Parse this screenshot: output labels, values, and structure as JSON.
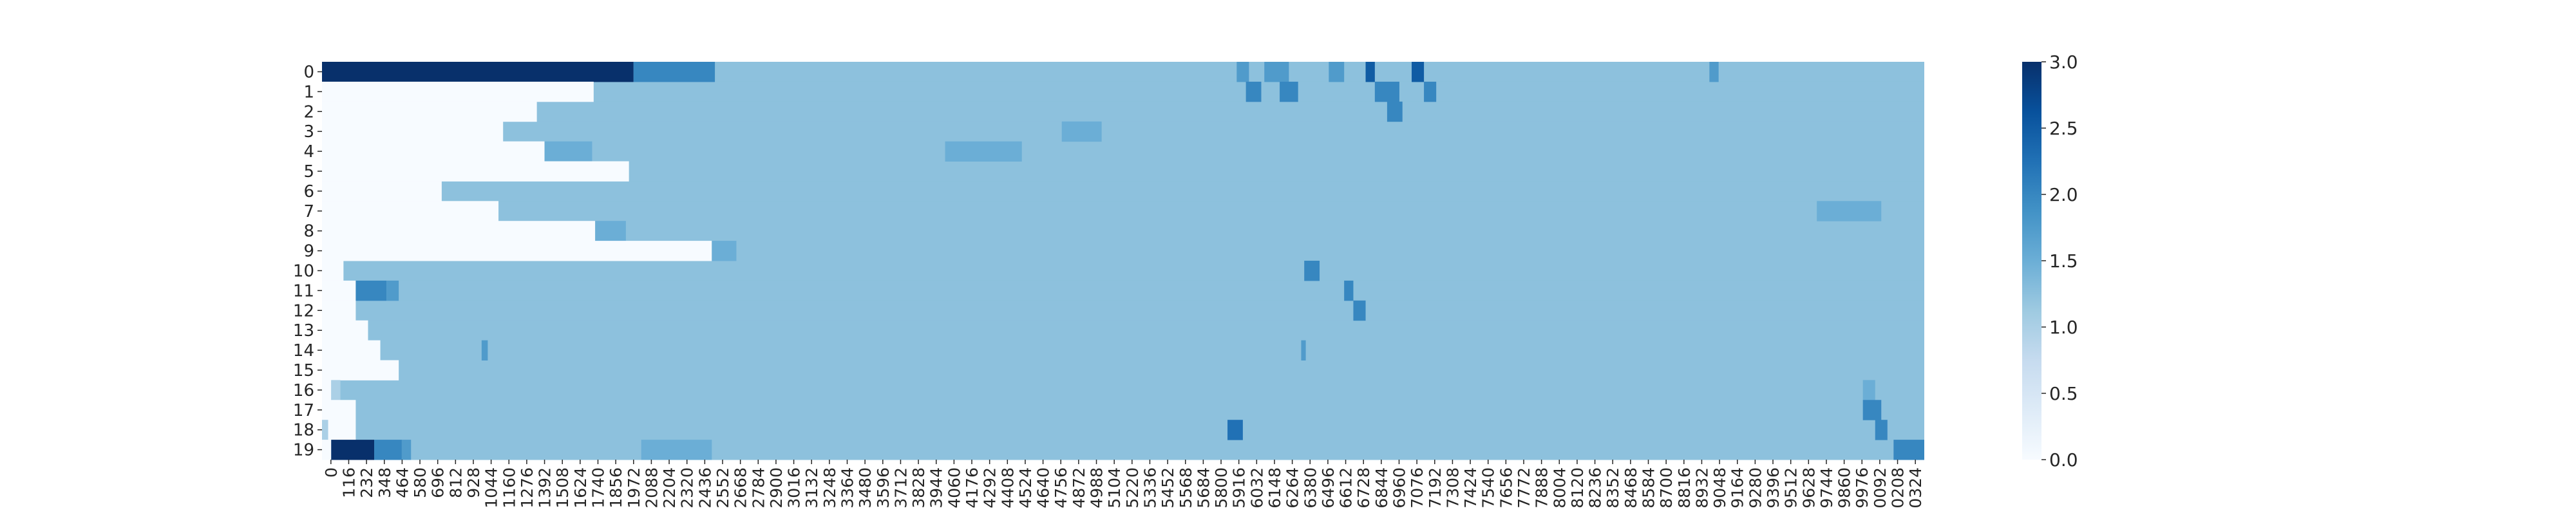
{
  "chart_data": {
    "type": "heatmap",
    "title": "",
    "xlabel": "",
    "ylabel": "",
    "colormap": "Blues",
    "value_range": [
      0,
      3
    ],
    "rows": [
      "0",
      "1",
      "2",
      "3",
      "4",
      "5",
      "6",
      "7",
      "8",
      "9",
      "10",
      "11",
      "12",
      "13",
      "14",
      "15",
      "16",
      "17",
      "18",
      "19"
    ],
    "x_ticks": [
      "0",
      "116",
      "232",
      "348",
      "464",
      "580",
      "696",
      "812",
      "928",
      "1044",
      "1160",
      "1276",
      "1392",
      "1508",
      "1624",
      "1740",
      "1856",
      "1972",
      "2088",
      "2204",
      "2320",
      "2436",
      "2552",
      "2668",
      "2784",
      "2900",
      "3016",
      "3132",
      "3248",
      "3364",
      "3480",
      "3596",
      "3712",
      "3828",
      "3944",
      "4060",
      "4176",
      "4292",
      "4408",
      "4524",
      "4640",
      "4756",
      "4872",
      "4988",
      "5104",
      "5220",
      "5336",
      "5452",
      "5568",
      "5684",
      "5800",
      "5916",
      "6032",
      "6148",
      "6264",
      "6380",
      "6496",
      "6612",
      "6728",
      "6844",
      "6960",
      "7076",
      "7192",
      "7308",
      "7424",
      "7540",
      "7656",
      "7772",
      "7888",
      "8004",
      "8120",
      "8236",
      "8352",
      "8468",
      "8584",
      "8700",
      "8816",
      "8932",
      "9048",
      "9164",
      "9280",
      "9396",
      "9512",
      "9628",
      "9744",
      "9860",
      "9976",
      "0092",
      "0208",
      "0324"
    ],
    "x_range": [
      0,
      10440
    ],
    "background_value": 1.25,
    "segments": [
      {
        "row": 0,
        "runs": [
          [
            0,
            2030,
            3
          ],
          [
            2030,
            2560,
            2
          ],
          [
            5960,
            6040,
            1.75
          ],
          [
            6140,
            6300,
            1.75
          ],
          [
            6560,
            6660,
            1.75
          ],
          [
            6800,
            6860,
            2.5
          ],
          [
            7100,
            7180,
            2.5
          ],
          [
            9040,
            9100,
            1.75
          ]
        ]
      },
      {
        "row": 1,
        "runs": [
          [
            0,
            1770,
            0
          ],
          [
            6020,
            6120,
            2
          ],
          [
            6240,
            6360,
            2
          ],
          [
            6860,
            7020,
            2
          ],
          [
            7180,
            7260,
            2
          ]
        ]
      },
      {
        "row": 2,
        "runs": [
          [
            0,
            1400,
            0
          ],
          [
            6940,
            7040,
            2
          ]
        ]
      },
      {
        "row": 3,
        "runs": [
          [
            0,
            1180,
            0
          ],
          [
            4820,
            5080,
            1.5
          ]
        ]
      },
      {
        "row": 4,
        "runs": [
          [
            0,
            1450,
            0
          ],
          [
            1450,
            1760,
            1.5
          ],
          [
            4060,
            4560,
            1.5
          ]
        ]
      },
      {
        "row": 5,
        "runs": [
          [
            0,
            2000,
            0
          ]
        ]
      },
      {
        "row": 6,
        "runs": [
          [
            0,
            780,
            0
          ]
        ]
      },
      {
        "row": 7,
        "runs": [
          [
            0,
            1150,
            0
          ],
          [
            9740,
            10160,
            1.5
          ]
        ]
      },
      {
        "row": 8,
        "runs": [
          [
            0,
            1780,
            0
          ],
          [
            1780,
            1980,
            1.5
          ]
        ]
      },
      {
        "row": 9,
        "runs": [
          [
            0,
            2540,
            0
          ],
          [
            2540,
            2700,
            1.5
          ]
        ]
      },
      {
        "row": 10,
        "runs": [
          [
            0,
            140,
            0
          ],
          [
            6400,
            6500,
            2
          ]
        ]
      },
      {
        "row": 11,
        "runs": [
          [
            0,
            220,
            0
          ],
          [
            220,
            420,
            2
          ],
          [
            420,
            500,
            1.75
          ],
          [
            6660,
            6720,
            2
          ]
        ]
      },
      {
        "row": 12,
        "runs": [
          [
            0,
            220,
            0
          ],
          [
            6720,
            6800,
            2
          ]
        ]
      },
      {
        "row": 13,
        "runs": [
          [
            0,
            300,
            0
          ]
        ]
      },
      {
        "row": 14,
        "runs": [
          [
            0,
            380,
            0
          ],
          [
            1040,
            1080,
            1.75
          ],
          [
            6380,
            6410,
            1.75
          ]
        ]
      },
      {
        "row": 15,
        "runs": [
          [
            0,
            500,
            0
          ]
        ]
      },
      {
        "row": 16,
        "runs": [
          [
            0,
            60,
            0
          ],
          [
            60,
            120,
            1
          ],
          [
            10040,
            10120,
            1.5
          ]
        ]
      },
      {
        "row": 17,
        "runs": [
          [
            0,
            220,
            0
          ],
          [
            10040,
            10160,
            2
          ]
        ]
      },
      {
        "row": 18,
        "runs": [
          [
            0,
            40,
            1
          ],
          [
            40,
            220,
            0
          ],
          [
            5900,
            6000,
            2.25
          ],
          [
            10120,
            10200,
            2
          ]
        ]
      },
      {
        "row": 19,
        "runs": [
          [
            0,
            60,
            0
          ],
          [
            60,
            340,
            3
          ],
          [
            340,
            520,
            2
          ],
          [
            520,
            580,
            1.75
          ],
          [
            2080,
            2540,
            1.5
          ],
          [
            10240,
            10440,
            2
          ]
        ]
      }
    ],
    "colorbar_ticks": [
      "0.0",
      "0.5",
      "1.0",
      "1.5",
      "2.0",
      "2.5",
      "3.0"
    ],
    "grid": false,
    "legend": "colorbar-right"
  }
}
